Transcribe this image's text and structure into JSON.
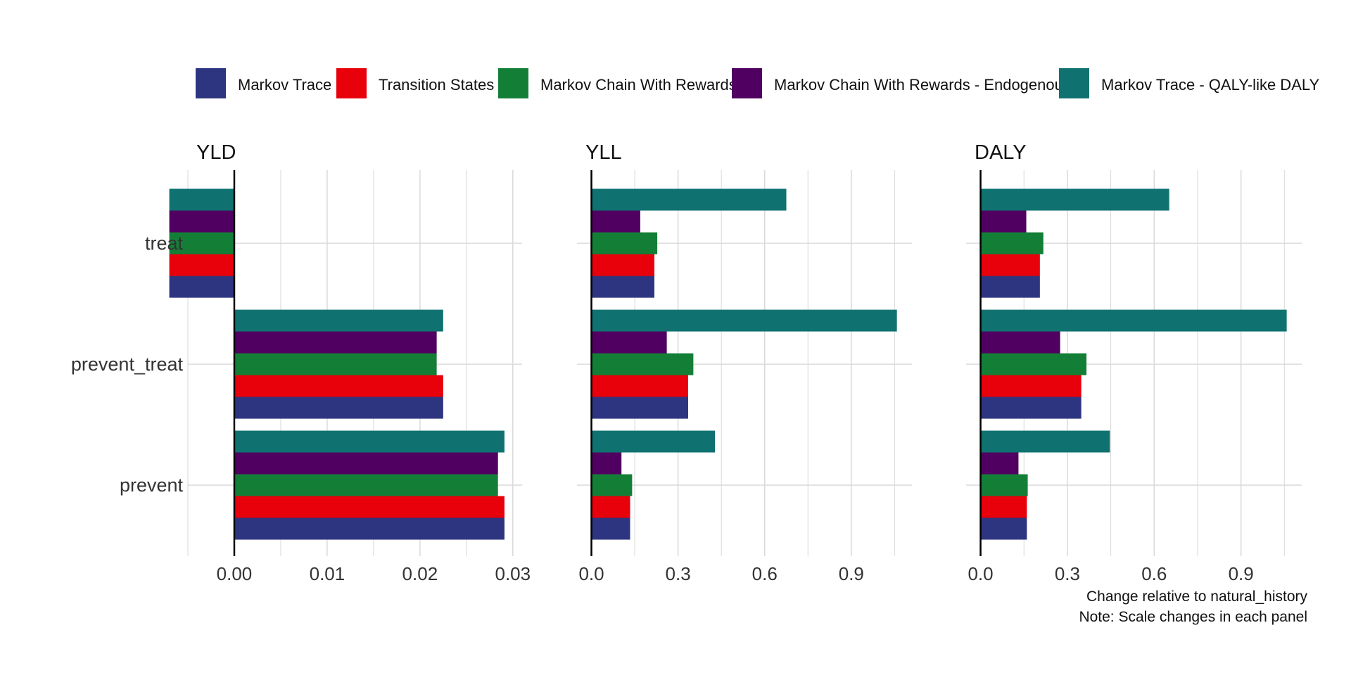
{
  "chart_data": {
    "type": "bar",
    "orientation": "horizontal",
    "grid": true,
    "legend_position": "top",
    "categories": [
      "treat",
      "prevent_treat",
      "prevent"
    ],
    "series": [
      {
        "name": "Markov Trace",
        "color": "#2D3580"
      },
      {
        "name": "Transition States",
        "color": "#E8000B"
      },
      {
        "name": "Markov Chain With Rewards",
        "color": "#137F36"
      },
      {
        "name": "Markov Chain With Rewards - Endogenous",
        "color": "#4F0060"
      },
      {
        "name": "Markov Trace - QALY-like DALY",
        "color": "#0F7270"
      }
    ],
    "panels": [
      {
        "title": "YLD",
        "xlim": [
          -0.005,
          0.031
        ],
        "ticks": [
          0.0,
          0.01,
          0.02,
          0.03
        ],
        "tick_labels": [
          "0.00",
          "0.01",
          "0.02",
          "0.03"
        ],
        "values": {
          "treat": [
            -0.007,
            -0.007,
            -0.007,
            -0.007,
            -0.007
          ],
          "prevent_treat": [
            0.0225,
            0.0225,
            0.0218,
            0.0218,
            0.0225
          ],
          "prevent": [
            0.0291,
            0.0291,
            0.0284,
            0.0284,
            0.0291
          ]
        }
      },
      {
        "title": "YLL",
        "xlim": [
          -0.05,
          1.11
        ],
        "ticks": [
          0.0,
          0.3,
          0.6,
          0.9
        ],
        "tick_labels": [
          "0.0",
          "0.3",
          "0.6",
          "0.9"
        ],
        "values": {
          "treat": [
            0.218,
            0.218,
            0.228,
            0.169,
            0.675
          ],
          "prevent_treat": [
            0.335,
            0.335,
            0.353,
            0.261,
            1.058
          ],
          "prevent": [
            0.134,
            0.134,
            0.141,
            0.104,
            0.428
          ]
        }
      },
      {
        "title": "DALY",
        "xlim": [
          -0.05,
          1.11
        ],
        "ticks": [
          0.0,
          0.3,
          0.6,
          0.9
        ],
        "tick_labels": [
          "0.0",
          "0.3",
          "0.6",
          "0.9"
        ],
        "values": {
          "treat": [
            0.205,
            0.205,
            0.217,
            0.158,
            0.652
          ],
          "prevent_treat": [
            0.348,
            0.348,
            0.366,
            0.275,
            1.058
          ],
          "prevent": [
            0.16,
            0.16,
            0.163,
            0.131,
            0.447
          ]
        }
      }
    ],
    "caption": [
      "Change relative to natural_history",
      "Note: Scale changes in each panel"
    ]
  }
}
